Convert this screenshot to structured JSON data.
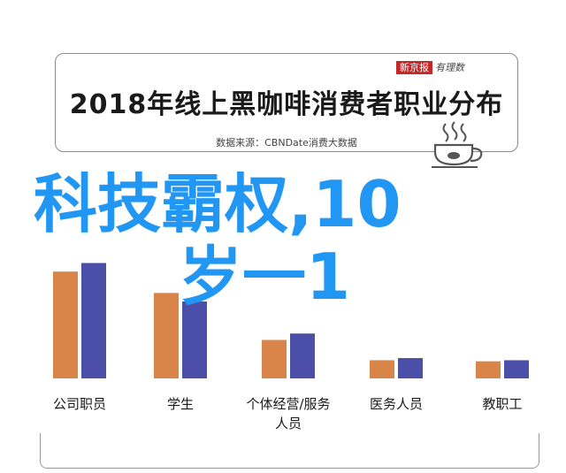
{
  "header": {
    "title": "2018年线上黑咖啡消费者职业分布",
    "source": "数据来源：CBNDate消费大数据",
    "logo_main": "新京报",
    "logo_sub": "有理数"
  },
  "overlay": {
    "line1": "科技霸权,10",
    "line2": "岁一1"
  },
  "icons": {
    "cup": "coffee-cup-icon"
  },
  "colors": {
    "series_a": "#d9854a",
    "series_b": "#4b4fa8",
    "overlay": "#2196f3"
  },
  "chart_data": {
    "type": "bar",
    "title": "2018年线上黑咖啡消费者职业分布",
    "categories": [
      "公司职员",
      "学生",
      "个体经营/服务人员",
      "医务人员",
      "教职工"
    ],
    "series": [
      {
        "values": [
          100,
          80,
          36,
          17,
          16
        ]
      },
      {
        "values": [
          108,
          72,
          42,
          19,
          17
        ]
      }
    ],
    "ylim": [
      0,
      120
    ],
    "grid": false
  }
}
